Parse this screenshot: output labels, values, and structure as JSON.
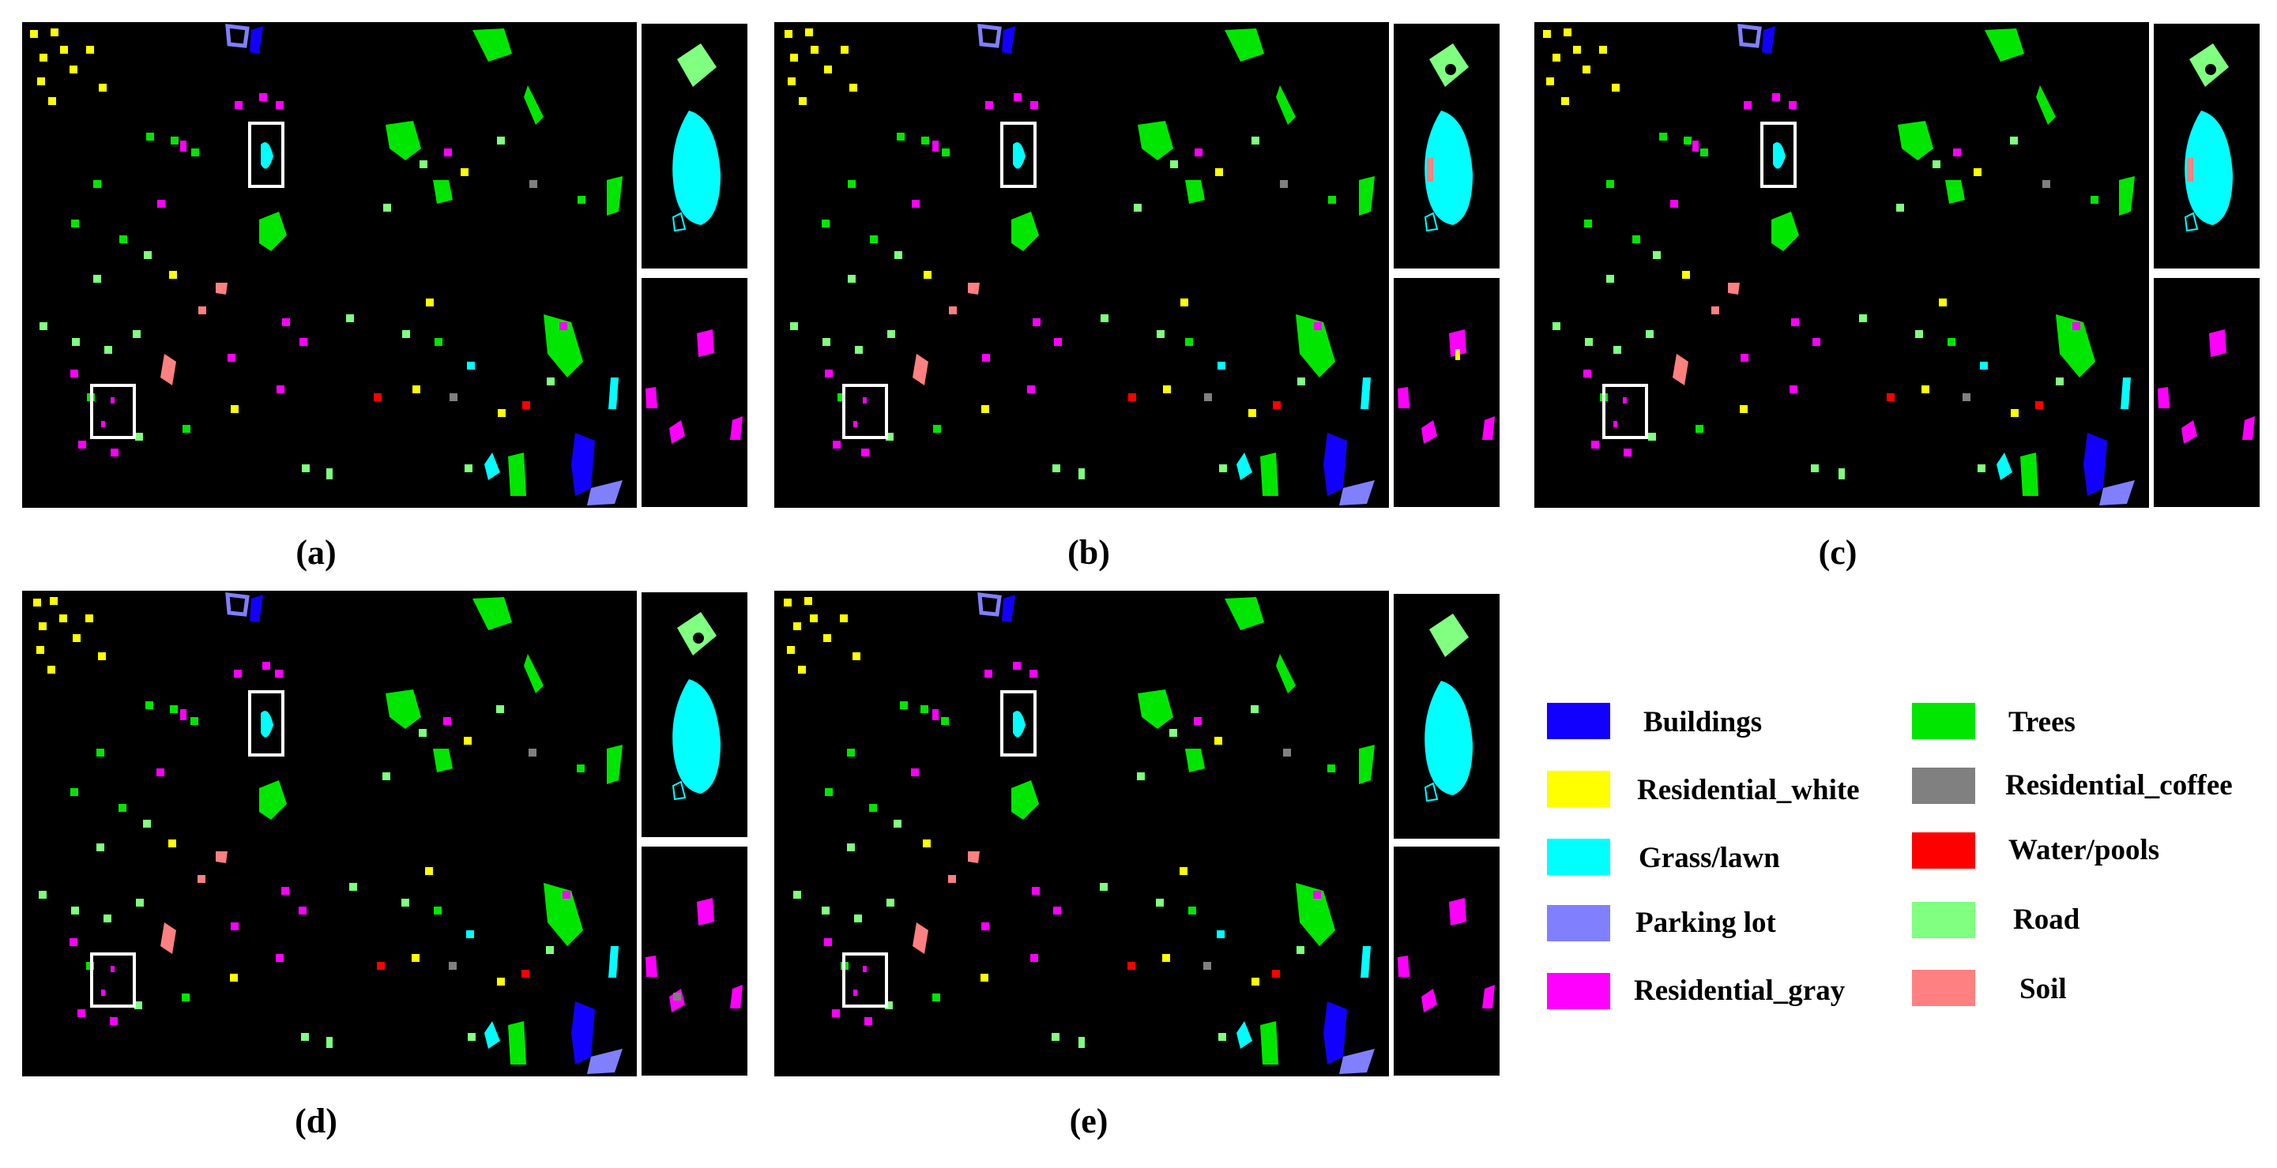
{
  "panels": [
    {
      "id": "a",
      "caption": "(a)"
    },
    {
      "id": "b",
      "caption": "(b)"
    },
    {
      "id": "c",
      "caption": "(c)"
    },
    {
      "id": "d",
      "caption": "(d)"
    },
    {
      "id": "e",
      "caption": "(e)"
    }
  ],
  "legend": [
    {
      "label": "Buildings",
      "color": "#1200ff"
    },
    {
      "label": "Trees",
      "color": "#00e600"
    },
    {
      "label": "Residential_white",
      "color": "#ffff00"
    },
    {
      "label": "Residential_coffee",
      "color": "#808080"
    },
    {
      "label": "Grass/lawn",
      "color": "#00ffff"
    },
    {
      "label": "Water/pools",
      "color": "#ff0000"
    },
    {
      "label": "Parking lot",
      "color": "#8080ff"
    },
    {
      "label": "Road",
      "color": "#80ff80"
    },
    {
      "label": "Residential_gray",
      "color": "#ff00ff"
    },
    {
      "label": "Soil",
      "color": "#ff8080"
    }
  ]
}
